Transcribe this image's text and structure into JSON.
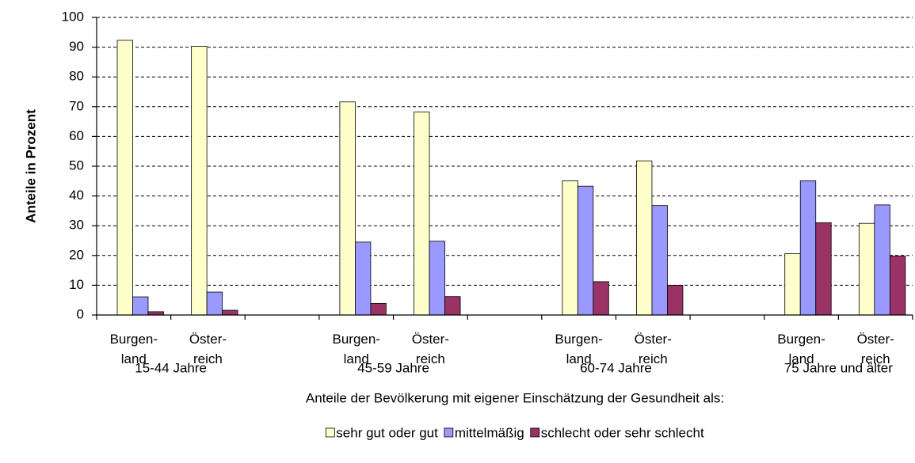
{
  "chart_data": {
    "type": "bar",
    "y_label": "Anteile in Prozent",
    "x_label": "Anteile der Bevölkerung mit eigener Einschätzung der Gesundheit als:",
    "categories": [
      "Burgen-\nland",
      "Öster-\nreich",
      null,
      "Burgen-\nland",
      "Öster-\nreich",
      null,
      "Burgen-\nland",
      "Öster-\nreich",
      null,
      "Burgen-\nland",
      "Öster-\nreich"
    ],
    "groups": [
      "15-44 Jahre",
      "45-59 Jahre",
      "60-74 Jahre",
      "75 Jahre und älter"
    ],
    "series": [
      {
        "name": "sehr gut oder gut",
        "color": "#ffffcc",
        "values": [
          92.3,
          90.3,
          null,
          71.6,
          68.2,
          null,
          45.1,
          51.8,
          null,
          20.6,
          30.8
        ]
      },
      {
        "name": "mittelmäßig",
        "color": "#9999ff",
        "values": [
          6.1,
          7.7,
          null,
          24.5,
          24.8,
          null,
          43.3,
          36.8,
          null,
          45.1,
          37.0
        ]
      },
      {
        "name": "schlecht oder sehr schlecht",
        "color": "#993366",
        "values": [
          1.1,
          1.6,
          null,
          3.9,
          6.2,
          null,
          11.2,
          10.0,
          null,
          31.0,
          19.8
        ]
      }
    ],
    "ylim": [
      0,
      100
    ],
    "yticks": [
      0,
      10,
      20,
      30,
      40,
      50,
      60,
      70,
      80,
      90,
      100
    ],
    "grid": true,
    "legend": "bottom"
  }
}
